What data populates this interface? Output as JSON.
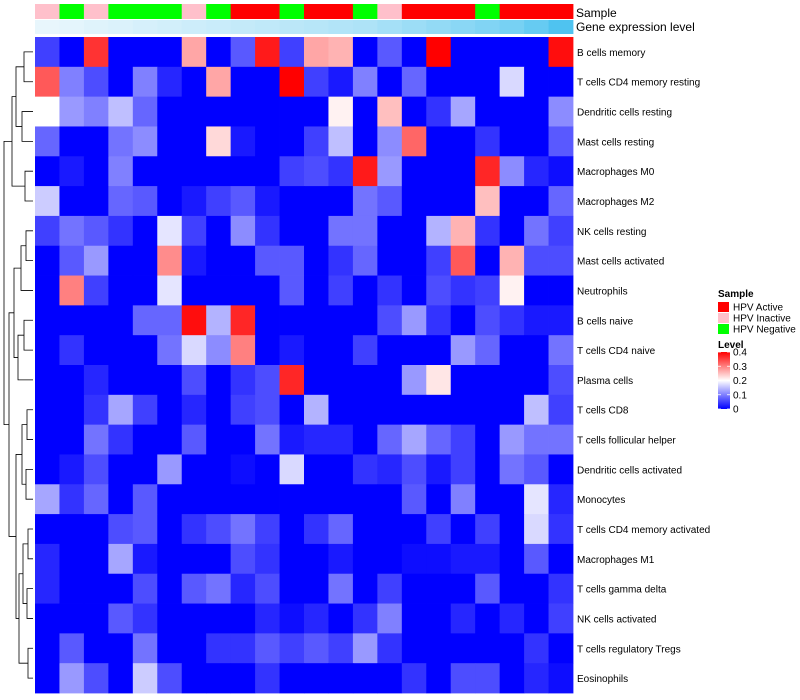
{
  "chart_data": {
    "type": "heatmap",
    "annotation_rows": [
      "Sample",
      "Gene expression level"
    ],
    "samples": [
      "HPV Inactive",
      "HPV Negative",
      "HPV Inactive",
      "HPV Negative",
      "HPV Negative",
      "HPV Negative",
      "HPV Inactive",
      "HPV Negative",
      "HPV Active",
      "HPV Active",
      "HPV Negative",
      "HPV Active",
      "HPV Active",
      "HPV Negative",
      "HPV Inactive",
      "HPV Active",
      "HPV Active",
      "HPV Active",
      "HPV Negative",
      "HPV Active",
      "HPV Active",
      "HPV Active"
    ],
    "expression_levels": [
      0.02,
      0.03,
      0.04,
      0.05,
      0.06,
      0.07,
      0.08,
      0.09,
      0.1,
      0.11,
      0.12,
      0.13,
      0.14,
      0.15,
      0.17,
      0.19,
      0.21,
      0.23,
      0.25,
      0.27,
      0.31,
      0.36
    ],
    "rows": [
      "B cells memory",
      "T cells CD4 memory resting",
      "Dendritic cells resting",
      "Mast cells resting",
      "Macrophages M0",
      "Macrophages M2",
      "NK cells resting",
      "Mast cells activated",
      "Neutrophils",
      "B cells naive",
      "T cells CD4 naive",
      "Plasma cells",
      "T cells CD8",
      "T cells follicular helper",
      "Dendritic cells activated",
      "Monocytes",
      "T cells CD4 memory activated",
      "Macrophages M1",
      "T cells gamma delta",
      "NK cells activated",
      "T cells regulatory  Tregs",
      "Eosinophils"
    ],
    "values": [
      [
        0.05,
        0,
        0.36,
        0,
        0,
        0,
        0.27,
        0,
        0.07,
        0.38,
        0.05,
        0.27,
        0.26,
        0,
        0.07,
        0,
        0.4,
        0,
        0,
        0,
        0,
        0.39
      ],
      [
        0.33,
        0.1,
        0.06,
        0,
        0.1,
        0.03,
        0,
        0.27,
        0,
        0,
        0.4,
        0.05,
        0.02,
        0.1,
        0,
        0.08,
        0,
        0,
        0,
        0.17,
        0,
        0
      ],
      [
        0.2,
        0.12,
        0.1,
        0.15,
        0.08,
        0,
        0,
        0,
        0,
        0,
        0,
        0,
        0.21,
        0,
        0.25,
        0,
        0.04,
        0.13,
        0,
        0,
        0,
        0.11
      ],
      [
        0.08,
        0,
        0,
        0.09,
        0.11,
        0,
        0,
        0.23,
        0.02,
        0,
        0,
        0.05,
        0.15,
        0,
        0.11,
        0.32,
        0,
        0,
        0.04,
        0,
        0,
        0.07
      ],
      [
        0,
        0.02,
        0,
        0.1,
        0,
        0,
        0,
        0,
        0,
        0,
        0.05,
        0.06,
        0.04,
        0.38,
        0.12,
        0,
        0,
        0,
        0.37,
        0.11,
        0.03,
        0.01
      ],
      [
        0.16,
        0,
        0,
        0.08,
        0.07,
        0,
        0.02,
        0.05,
        0.07,
        0.02,
        0,
        0,
        0,
        0.09,
        0.07,
        0,
        0,
        0,
        0.25,
        0,
        0,
        0.08
      ],
      [
        0.05,
        0.09,
        0.07,
        0.04,
        0,
        0.18,
        0.05,
        0,
        0.11,
        0.04,
        0,
        0,
        0.09,
        0.09,
        0,
        0,
        0.14,
        0.26,
        0.04,
        0,
        0.09,
        0.05
      ],
      [
        0,
        0.07,
        0.12,
        0,
        0,
        0.29,
        0.02,
        0,
        0,
        0.07,
        0.07,
        0,
        0.04,
        0.08,
        0,
        0,
        0.05,
        0.33,
        0,
        0.26,
        0.06,
        0.06
      ],
      [
        0,
        0.3,
        0.05,
        0,
        0,
        0.18,
        0,
        0,
        0,
        0,
        0.07,
        0,
        0.05,
        0,
        0.04,
        0,
        0.06,
        0.04,
        0.05,
        0.21,
        0,
        0
      ],
      [
        0,
        0,
        0,
        0,
        0.08,
        0.08,
        0.39,
        0.14,
        0.37,
        0,
        0,
        0,
        0,
        0,
        0.06,
        0.12,
        0.04,
        0,
        0.06,
        0.04,
        0.02,
        0.02
      ],
      [
        0,
        0.04,
        0,
        0,
        0,
        0.09,
        0.17,
        0.11,
        0.3,
        0,
        0.02,
        0,
        0,
        0.05,
        0,
        0,
        0,
        0.12,
        0.08,
        0,
        0,
        0.09
      ],
      [
        0,
        0,
        0.03,
        0,
        0,
        0,
        0.06,
        0,
        0.04,
        0.06,
        0.37,
        0,
        0,
        0,
        0,
        0.12,
        0.22,
        0,
        0,
        0,
        0,
        0.06
      ],
      [
        0,
        0,
        0.04,
        0.13,
        0.05,
        0,
        0.03,
        0,
        0.05,
        0.06,
        0,
        0.14,
        0,
        0,
        0,
        0,
        0,
        0,
        0,
        0,
        0.15,
        0.05
      ],
      [
        0,
        0,
        0.09,
        0.04,
        0,
        0,
        0.07,
        0,
        0,
        0.09,
        0.02,
        0.03,
        0.03,
        0,
        0.08,
        0.13,
        0.08,
        0.05,
        0,
        0.12,
        0.09,
        0.09
      ],
      [
        0,
        0.02,
        0.06,
        0,
        0,
        0.12,
        0,
        0,
        0.01,
        0,
        0.17,
        0,
        0,
        0.04,
        0.03,
        0.06,
        0.02,
        0.05,
        0,
        0.09,
        0.07,
        0
      ],
      [
        0.13,
        0.04,
        0.08,
        0,
        0.07,
        0,
        0,
        0,
        0,
        0,
        0,
        0,
        0,
        0,
        0,
        0.07,
        0,
        0.1,
        0,
        0,
        0.18,
        0.03
      ],
      [
        0,
        0,
        0,
        0.06,
        0.07,
        0,
        0.04,
        0.06,
        0.09,
        0.05,
        0,
        0.04,
        0.08,
        0,
        0,
        0,
        0.05,
        0,
        0.05,
        0,
        0.17,
        0.04
      ],
      [
        0.03,
        0,
        0,
        0.13,
        0.02,
        0,
        0,
        0,
        0.06,
        0.04,
        0,
        0,
        0.02,
        0,
        0,
        0.01,
        0.01,
        0.02,
        0.02,
        0,
        0.07,
        0
      ],
      [
        0.03,
        0,
        0,
        0,
        0.06,
        0,
        0.07,
        0.09,
        0.03,
        0.06,
        0,
        0,
        0.09,
        0,
        0.05,
        0,
        0,
        0,
        0.07,
        0,
        0,
        0.04
      ],
      [
        0,
        0,
        0,
        0.07,
        0.04,
        0,
        0,
        0,
        0,
        0.03,
        0.01,
        0.03,
        0,
        0.04,
        0.1,
        0,
        0,
        0.03,
        0,
        0.03,
        0,
        0.05
      ],
      [
        0,
        0.07,
        0,
        0,
        0.09,
        0,
        0,
        0.04,
        0.04,
        0.07,
        0.05,
        0.07,
        0.05,
        0.12,
        0.04,
        0,
        0,
        0,
        0,
        0,
        0.04,
        0
      ],
      [
        0,
        0.12,
        0.06,
        0,
        0.16,
        0.06,
        0,
        0,
        0,
        0.04,
        0,
        0,
        0,
        0,
        0,
        0.04,
        0,
        0.06,
        0.06,
        0,
        0.03,
        0.01
      ]
    ],
    "color_scale": {
      "colors": [
        "#0000ff",
        "#ffffff",
        "#ff0000"
      ],
      "domain": [
        0,
        0.2,
        0.4
      ]
    },
    "legend": {
      "sample_title": "Sample",
      "sample_entries": [
        {
          "label": "HPV Active",
          "color": "#ff0000"
        },
        {
          "label": "HPV Inactive",
          "color": "#ffc0cb"
        },
        {
          "label": "HPV Negative",
          "color": "#00ff00"
        }
      ],
      "level_title": "Level",
      "level_ticks": [
        "0",
        "0.1",
        "0.2",
        "0.3",
        "0.4"
      ],
      "level_range": [
        0,
        0.4
      ]
    },
    "row_dendrogram": true,
    "position": "right"
  },
  "colors": {
    "HPV Active": "#ff0000",
    "HPV Inactive": "#ffc0cb",
    "HPV Negative": "#00ff00",
    "expr_low": "#e8f6fc",
    "expr_high": "#4fc3f0"
  }
}
